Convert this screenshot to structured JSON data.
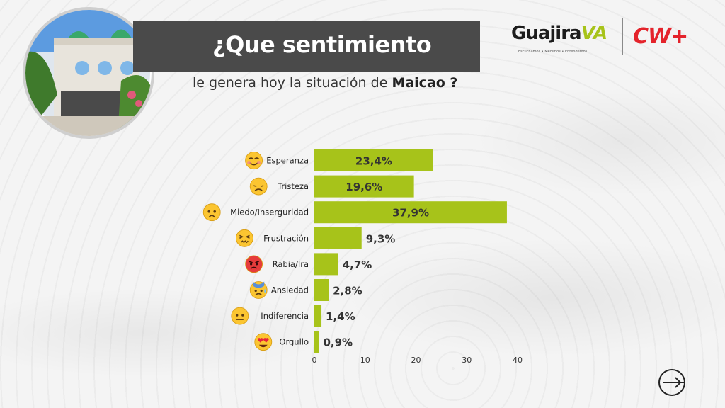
{
  "header": {
    "title": "¿Que sentimiento",
    "subtitle_prefix": "le genera hoy la situación de ",
    "subtitle_bold": "Maicao ?"
  },
  "logos": {
    "guajira_main": "Guajira",
    "guajira_va": "VA",
    "guajira_tagline": "Escuchamos • Medimos • Entendemos",
    "cw": "CW+"
  },
  "colors": {
    "bar": "#a7c31a",
    "title_bar": "#4a4a4a",
    "cw_red": "#e4232b"
  },
  "chart_data": {
    "type": "bar",
    "orientation": "horizontal",
    "categories": [
      "Esperanza",
      "Tristeza",
      "Miedo/Inserguridad",
      "Frustración",
      "Rabia/Ira",
      "Ansiedad",
      "Indiferencia",
      "Orgullo"
    ],
    "values": [
      23.4,
      19.6,
      37.9,
      9.3,
      4.7,
      2.8,
      1.4,
      0.9
    ],
    "data_labels": [
      "23,4%",
      "19,6%",
      "37,9%",
      "9,3%",
      "4,7%",
      "2,8%",
      "1,4%",
      "0,9%"
    ],
    "icons": [
      "smiling-face-icon",
      "sad-face-icon",
      "fearful-face-icon",
      "frustrated-face-icon",
      "angry-face-icon",
      "anxious-face-icon",
      "neutral-face-icon",
      "heart-eyes-face-icon"
    ],
    "xticks": [
      "0",
      "10",
      "20",
      "30",
      "40"
    ],
    "xlim": [
      0,
      40
    ],
    "grid": false
  }
}
